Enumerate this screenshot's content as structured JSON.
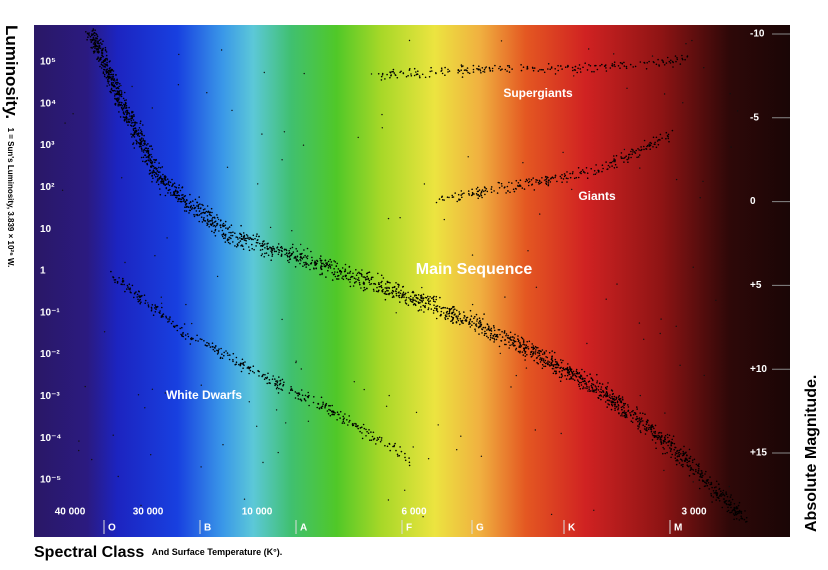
{
  "axes": {
    "left": {
      "title": "Luminosity.",
      "note": "1 = Sun's Luminosity, 3.839 × 10²⁶ W.",
      "ticks": [
        "10⁵",
        "10⁴",
        "10³",
        "10²",
        "10",
        "1",
        "10⁻¹",
        "10⁻²",
        "10⁻³",
        "10⁻⁴",
        "10⁻⁵"
      ]
    },
    "right": {
      "title": "Absolute Magnitude.",
      "ticks": [
        "-10",
        "-5",
        "0",
        "+5",
        "+10",
        "+15"
      ]
    },
    "bottom": {
      "title": "Spectral Class",
      "note": "And Surface Temperature (K°).",
      "temperatures": [
        "40 000",
        "30 000",
        "10 000",
        "6 000",
        "3 000"
      ],
      "classes": [
        "O",
        "B",
        "A",
        "F",
        "G",
        "K",
        "M"
      ]
    }
  },
  "regions": [
    "Supergiants",
    "Giants",
    "Main Sequence",
    "White Dwarfs"
  ]
}
